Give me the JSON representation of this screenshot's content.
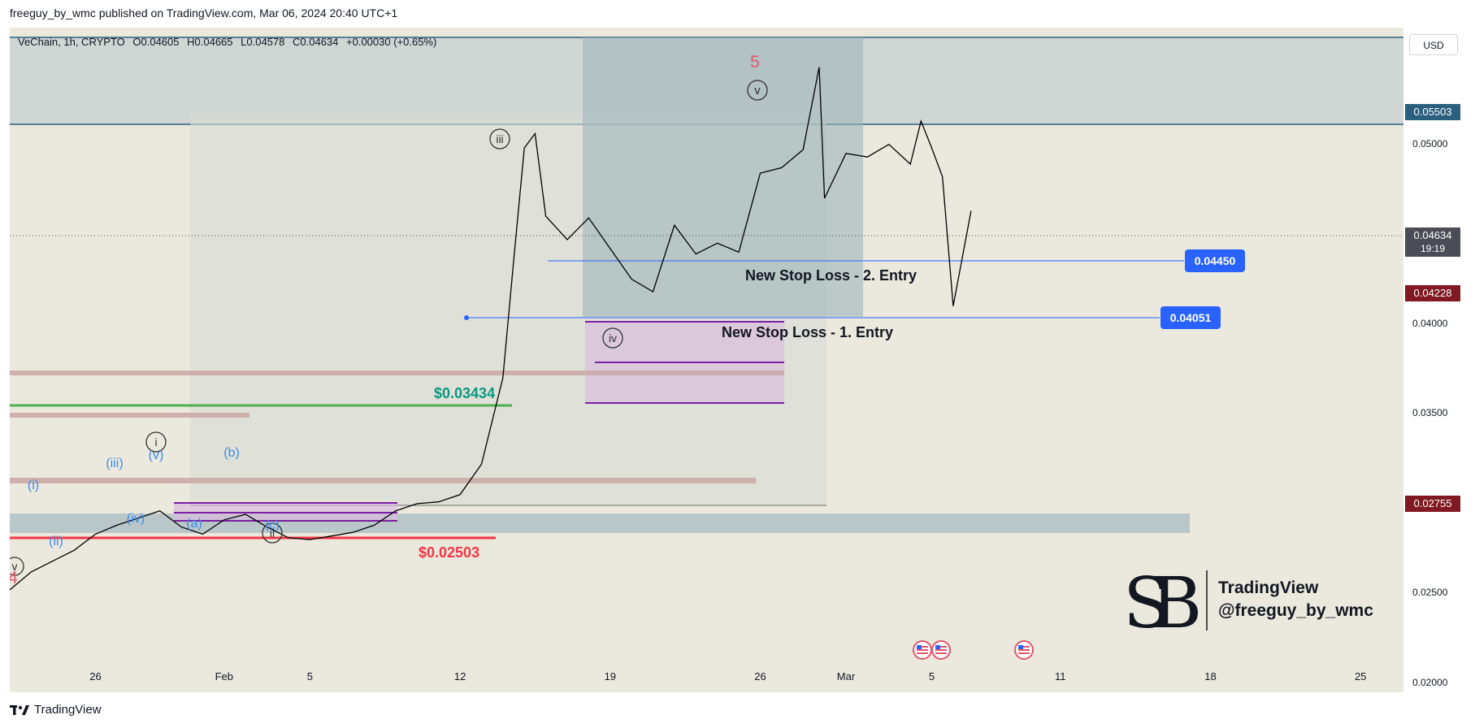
{
  "header": {
    "publisher_line": "freeguy_by_wmc published on TradingView.com, Mar 06, 2024 20:40 UTC+1"
  },
  "legend": {
    "symbol": "VeChain, 1h, CRYPTO",
    "open": "O0.04605",
    "high": "H0.04665",
    "low": "L0.04578",
    "close": "C0.04634",
    "change": "+0.00030 (+0.65%)"
  },
  "price_axis": {
    "currency": "USD",
    "badges": {
      "resistance": "0.05503",
      "last": "0.04634",
      "countdown": "19:19",
      "level_mid": "0.04228",
      "level_low": "0.02755"
    }
  },
  "annotations": {
    "stop2_label": "New Stop Loss - 2. Entry",
    "stop1_label": "New Stop Loss - 1. Entry",
    "green_price": "$0.03434",
    "red_price": "$0.02503",
    "tag_2": "0.04450",
    "tag_1": "0.04051",
    "wave_5": "5",
    "wave_4": "4",
    "wave_c_v": "v",
    "wave_c_iii": "iii",
    "wave_c_iv": "iv",
    "wave_c_i": "i",
    "wave_c_ii": "ii",
    "wave_c_v_left": "v",
    "wave_b_i": "(i)",
    "wave_b_ii": "(ii)",
    "wave_b_iii": "(iii)",
    "wave_b_iv": "(iv)",
    "wave_b_v": "(v)",
    "wave_b_a": "(a)",
    "wave_b_b": "(b)",
    "wave_b_c": "(c)"
  },
  "watermark": {
    "line1": "TradingView",
    "line2": "@freeguy_by_wmc"
  },
  "footer": {
    "brand": "TradingView"
  },
  "colors": {
    "background": "#ebe8dd",
    "candle": "#000000",
    "blue_line": "#2962ff",
    "green_line": "#4caf50",
    "red_line": "#f23645",
    "purple": "#7b1fa2",
    "badge_blue": "#2a5f7e",
    "badge_red": "#801922"
  },
  "chart_data": {
    "type": "line",
    "title": "",
    "instrument": "VeChain, 1h, CRYPTO",
    "y_axis": {
      "min": 0.0195,
      "max": 0.0565,
      "ticks": [
        0.02,
        0.025,
        0.03,
        0.035,
        0.04,
        0.05
      ],
      "tick_labels": [
        "0.02000",
        "0.02500",
        "0.03000",
        "0.03500",
        "0.04000",
        "0.05000"
      ],
      "scale": "linear"
    },
    "x_axis": {
      "start": "2024-01-22",
      "end": "2024-03-27",
      "tick_labels": [
        "26",
        "Feb",
        "5",
        "12",
        "19",
        "26",
        "Mar",
        "5",
        "11",
        "18",
        "25"
      ],
      "tick_dates": [
        "2024-01-26",
        "2024-02-01",
        "2024-02-05",
        "2024-02-12",
        "2024-02-19",
        "2024-02-26",
        "2024-03-01",
        "2024-03-05",
        "2024-03-11",
        "2024-03-18",
        "2024-03-25"
      ]
    },
    "grid": false,
    "series": [
      {
        "x": [
          "2024-01-22",
          "2024-01-23",
          "2024-01-24",
          "2024-01-25",
          "2024-01-26",
          "2024-01-27",
          "2024-01-28",
          "2024-01-29",
          "2024-01-30",
          "2024-01-31",
          "2024-02-01",
          "2024-02-02",
          "2024-02-03",
          "2024-02-04",
          "2024-02-05",
          "2024-02-06",
          "2024-02-07",
          "2024-02-08",
          "2024-02-09",
          "2024-02-10",
          "2024-02-11",
          "2024-02-12",
          "2024-02-13",
          "2024-02-14",
          "2024-02-14T12:00",
          "2024-02-15",
          "2024-02-15T12:00",
          "2024-02-16",
          "2024-02-17",
          "2024-02-18",
          "2024-02-19",
          "2024-02-20",
          "2024-02-21",
          "2024-02-22",
          "2024-02-23",
          "2024-02-24",
          "2024-02-25",
          "2024-02-26",
          "2024-02-27",
          "2024-02-28",
          "2024-02-28T18:00",
          "2024-02-29",
          "2024-03-01",
          "2024-03-02",
          "2024-03-03",
          "2024-03-04",
          "2024-03-04T12:00",
          "2024-03-05",
          "2024-03-05T12:00",
          "2024-03-06",
          "2024-03-06T20:00"
        ],
        "values": [
          0.0252,
          0.0262,
          0.0268,
          0.0274,
          0.0283,
          0.0288,
          0.0292,
          0.0296,
          0.0287,
          0.0283,
          0.0291,
          0.0294,
          0.0287,
          0.0281,
          0.028,
          0.0282,
          0.0284,
          0.0288,
          0.0296,
          0.03,
          0.0301,
          0.0305,
          0.0322,
          0.037,
          0.0435,
          0.0498,
          0.0506,
          0.046,
          0.0447,
          0.0459,
          0.0442,
          0.0425,
          0.0418,
          0.0455,
          0.0439,
          0.0445,
          0.044,
          0.0484,
          0.0487,
          0.0497,
          0.0543,
          0.047,
          0.0495,
          0.0493,
          0.05,
          0.0489,
          0.0513,
          0.0498,
          0.0482,
          0.041,
          0.0463
        ]
      }
    ],
    "levels": {
      "resistance": 0.05503,
      "last": 0.04634,
      "tag_2": 0.0445,
      "tag_1": 0.04051,
      "level_mid": 0.04228,
      "level_low": 0.02755,
      "green": 0.03434,
      "red": 0.02503
    }
  }
}
